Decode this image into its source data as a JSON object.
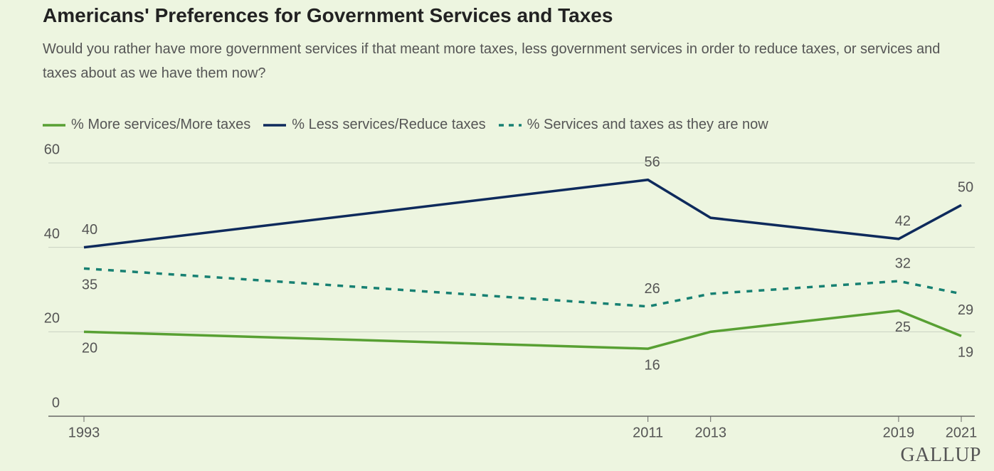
{
  "chart_data": {
    "type": "line",
    "title": "Americans' Preferences for Government Services and Taxes",
    "subtitle": "Would you rather have more government services if that meant more taxes, less government services in order to reduce taxes, or services and taxes about as we have them now?",
    "x": [
      1993,
      2011,
      2013,
      2019,
      2021
    ],
    "xlim": [
      1993,
      2021
    ],
    "xticks": [
      1993,
      2011,
      2013,
      2019,
      2021
    ],
    "ylim": [
      0,
      60
    ],
    "yticks": [
      0,
      20,
      40,
      60
    ],
    "grid": true,
    "legend": "top",
    "series": [
      {
        "name": "% More services/More taxes",
        "color": "#58a033",
        "style": "solid",
        "values": [
          20,
          16,
          20,
          25,
          19
        ],
        "value_labels": [
          "20",
          "16",
          null,
          "25",
          "19"
        ]
      },
      {
        "name": "% Less services/Reduce taxes",
        "color": "#0e2a5c",
        "style": "solid",
        "values": [
          40,
          56,
          47,
          42,
          50
        ],
        "value_labels": [
          "40",
          "56",
          null,
          "42",
          "50"
        ]
      },
      {
        "name": "% Services and taxes as they are now",
        "color": "#178072",
        "style": "dashed",
        "values": [
          35,
          26,
          29,
          32,
          29
        ],
        "value_labels": [
          "35",
          "26",
          null,
          "32",
          "29"
        ]
      }
    ],
    "source": "GALLUP"
  }
}
